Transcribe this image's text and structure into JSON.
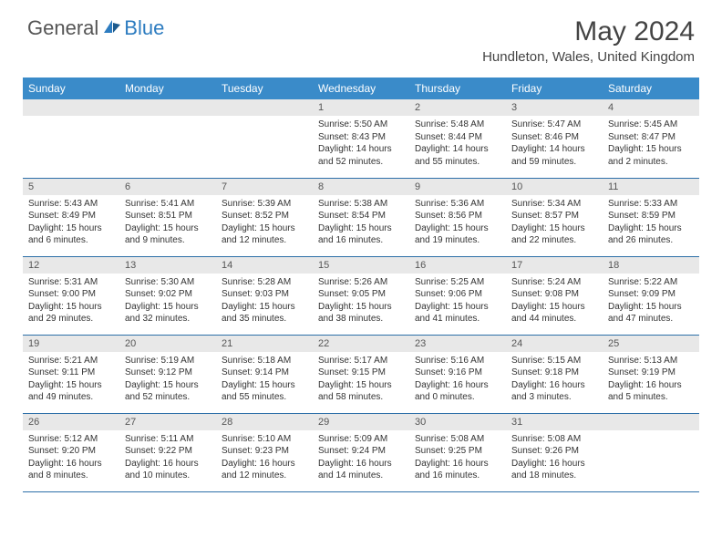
{
  "logo": {
    "general": "General",
    "blue": "Blue"
  },
  "title": "May 2024",
  "location": "Hundleton, Wales, United Kingdom",
  "colors": {
    "header_bg": "#3a8bc9",
    "header_text": "#ffffff",
    "daynum_bg": "#e8e8e8",
    "border": "#2d6fa8",
    "logo_blue": "#2d7cc0"
  },
  "weekdays": [
    "Sunday",
    "Monday",
    "Tuesday",
    "Wednesday",
    "Thursday",
    "Friday",
    "Saturday"
  ],
  "weeks": [
    [
      null,
      null,
      null,
      {
        "n": "1",
        "sr": "5:50 AM",
        "ss": "8:43 PM",
        "dl": "14 hours and 52 minutes."
      },
      {
        "n": "2",
        "sr": "5:48 AM",
        "ss": "8:44 PM",
        "dl": "14 hours and 55 minutes."
      },
      {
        "n": "3",
        "sr": "5:47 AM",
        "ss": "8:46 PM",
        "dl": "14 hours and 59 minutes."
      },
      {
        "n": "4",
        "sr": "5:45 AM",
        "ss": "8:47 PM",
        "dl": "15 hours and 2 minutes."
      }
    ],
    [
      {
        "n": "5",
        "sr": "5:43 AM",
        "ss": "8:49 PM",
        "dl": "15 hours and 6 minutes."
      },
      {
        "n": "6",
        "sr": "5:41 AM",
        "ss": "8:51 PM",
        "dl": "15 hours and 9 minutes."
      },
      {
        "n": "7",
        "sr": "5:39 AM",
        "ss": "8:52 PM",
        "dl": "15 hours and 12 minutes."
      },
      {
        "n": "8",
        "sr": "5:38 AM",
        "ss": "8:54 PM",
        "dl": "15 hours and 16 minutes."
      },
      {
        "n": "9",
        "sr": "5:36 AM",
        "ss": "8:56 PM",
        "dl": "15 hours and 19 minutes."
      },
      {
        "n": "10",
        "sr": "5:34 AM",
        "ss": "8:57 PM",
        "dl": "15 hours and 22 minutes."
      },
      {
        "n": "11",
        "sr": "5:33 AM",
        "ss": "8:59 PM",
        "dl": "15 hours and 26 minutes."
      }
    ],
    [
      {
        "n": "12",
        "sr": "5:31 AM",
        "ss": "9:00 PM",
        "dl": "15 hours and 29 minutes."
      },
      {
        "n": "13",
        "sr": "5:30 AM",
        "ss": "9:02 PM",
        "dl": "15 hours and 32 minutes."
      },
      {
        "n": "14",
        "sr": "5:28 AM",
        "ss": "9:03 PM",
        "dl": "15 hours and 35 minutes."
      },
      {
        "n": "15",
        "sr": "5:26 AM",
        "ss": "9:05 PM",
        "dl": "15 hours and 38 minutes."
      },
      {
        "n": "16",
        "sr": "5:25 AM",
        "ss": "9:06 PM",
        "dl": "15 hours and 41 minutes."
      },
      {
        "n": "17",
        "sr": "5:24 AM",
        "ss": "9:08 PM",
        "dl": "15 hours and 44 minutes."
      },
      {
        "n": "18",
        "sr": "5:22 AM",
        "ss": "9:09 PM",
        "dl": "15 hours and 47 minutes."
      }
    ],
    [
      {
        "n": "19",
        "sr": "5:21 AM",
        "ss": "9:11 PM",
        "dl": "15 hours and 49 minutes."
      },
      {
        "n": "20",
        "sr": "5:19 AM",
        "ss": "9:12 PM",
        "dl": "15 hours and 52 minutes."
      },
      {
        "n": "21",
        "sr": "5:18 AM",
        "ss": "9:14 PM",
        "dl": "15 hours and 55 minutes."
      },
      {
        "n": "22",
        "sr": "5:17 AM",
        "ss": "9:15 PM",
        "dl": "15 hours and 58 minutes."
      },
      {
        "n": "23",
        "sr": "5:16 AM",
        "ss": "9:16 PM",
        "dl": "16 hours and 0 minutes."
      },
      {
        "n": "24",
        "sr": "5:15 AM",
        "ss": "9:18 PM",
        "dl": "16 hours and 3 minutes."
      },
      {
        "n": "25",
        "sr": "5:13 AM",
        "ss": "9:19 PM",
        "dl": "16 hours and 5 minutes."
      }
    ],
    [
      {
        "n": "26",
        "sr": "5:12 AM",
        "ss": "9:20 PM",
        "dl": "16 hours and 8 minutes."
      },
      {
        "n": "27",
        "sr": "5:11 AM",
        "ss": "9:22 PM",
        "dl": "16 hours and 10 minutes."
      },
      {
        "n": "28",
        "sr": "5:10 AM",
        "ss": "9:23 PM",
        "dl": "16 hours and 12 minutes."
      },
      {
        "n": "29",
        "sr": "5:09 AM",
        "ss": "9:24 PM",
        "dl": "16 hours and 14 minutes."
      },
      {
        "n": "30",
        "sr": "5:08 AM",
        "ss": "9:25 PM",
        "dl": "16 hours and 16 minutes."
      },
      {
        "n": "31",
        "sr": "5:08 AM",
        "ss": "9:26 PM",
        "dl": "16 hours and 18 minutes."
      },
      null
    ]
  ],
  "labels": {
    "sunrise": "Sunrise:",
    "sunset": "Sunset:",
    "daylight": "Daylight:"
  }
}
